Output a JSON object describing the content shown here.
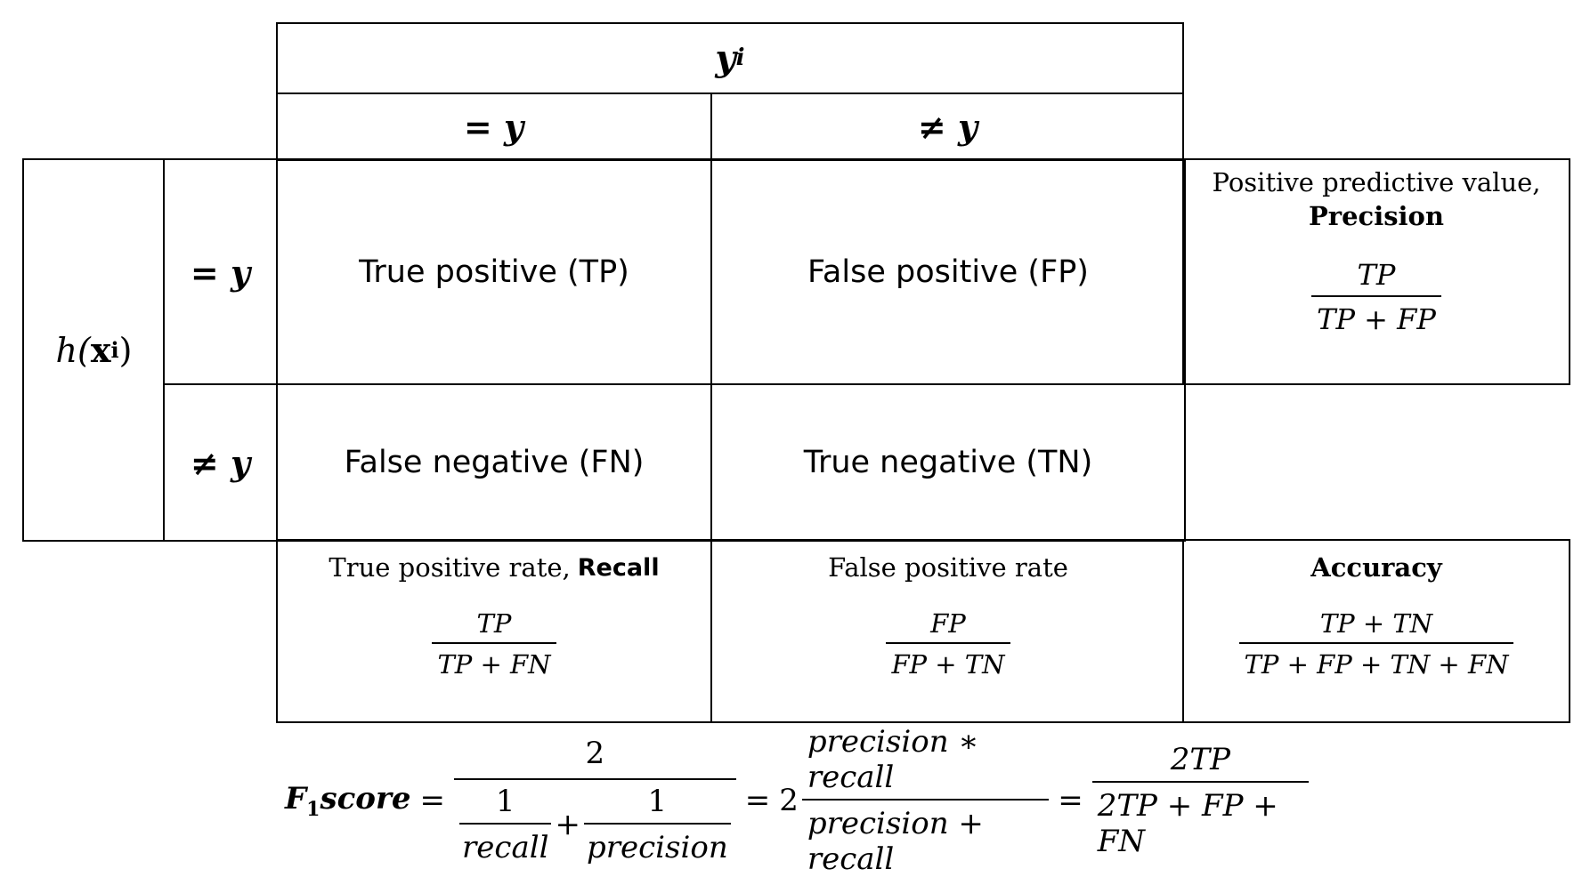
{
  "header": {
    "yi_symbol": "y",
    "yi_subscript": "i",
    "col_eq": "= y",
    "col_neq": "≠ y"
  },
  "rows": {
    "h_symbol": "h(",
    "h_x": "x",
    "h_sub": "i",
    "h_close": ")",
    "row_eq": "= y",
    "row_neq": "≠ y"
  },
  "cells": {
    "tp": "True positive (TP)",
    "fp": "False positive (FP)",
    "fn": "False negative (FN)",
    "tn": "True negative (TN)"
  },
  "precision": {
    "label_line1": "Positive predictive value,",
    "label_bold": "Precision",
    "numerator": "TP",
    "denominator": "TP + FP"
  },
  "recall": {
    "label": "True positive rate,",
    "label_bold": "Recall",
    "numerator": "TP",
    "denominator": "TP + FN"
  },
  "fpr": {
    "label": "False positive rate",
    "numerator": "FP",
    "denominator": "FP + TN"
  },
  "accuracy": {
    "label_bold": "Accuracy",
    "numerator": "TP + TN",
    "denominator": "TP + FP + TN + FN"
  },
  "f1": {
    "lhs_f": "F",
    "lhs_sub": "1",
    "lhs_score": "score",
    "eq": "=",
    "frac1_num": "2",
    "inner1_num": "1",
    "inner1_den": "recall",
    "plus": "+",
    "inner2_num": "1",
    "inner2_den": "precision",
    "two": "2",
    "frac2_num": "precision ∗ recall",
    "frac2_den": "precision + recall",
    "frac3_num": "2TP",
    "frac3_den": "2TP + FP + FN"
  }
}
